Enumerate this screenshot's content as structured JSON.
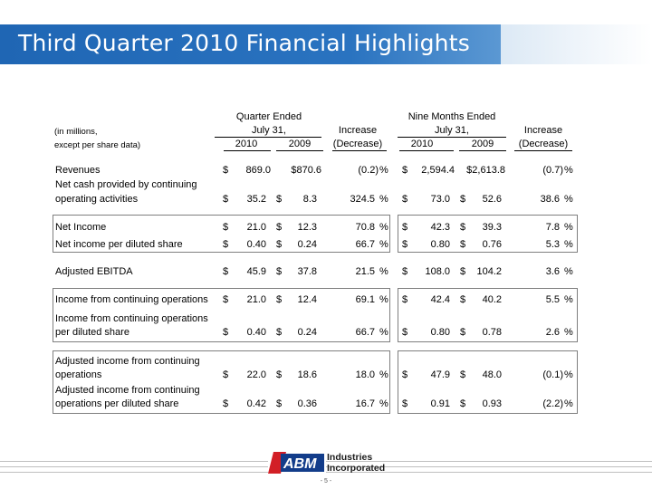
{
  "title": "Third Quarter 2010 Financial Highlights",
  "header": {
    "qe_label": "Quarter Ended",
    "qe_date": "July 31,",
    "nme_label": "Nine Months Ended",
    "nme_date": "July 31,",
    "inc1": "Increase",
    "inc2": "(Decrease)",
    "units1": "(in millions,",
    "units2": "except per share data)",
    "y2010": "2010",
    "y2009": "2009"
  },
  "rows": {
    "revenues": {
      "label1": "Revenues",
      "d1": "$",
      "v1": "869.0",
      "d2": "",
      "v2": "$870.6",
      "inc1": "(0.2)",
      "p1": "%",
      "d3": "$",
      "v3": "2,594.4",
      "d4": "",
      "v4": "$2,613.8",
      "inc2": "(0.7)",
      "p2": "%"
    },
    "netcash": {
      "label1": "Net cash provided by continuing",
      "label2": "operating activities",
      "d1": "$",
      "v1": "35.2",
      "d2": "$",
      "v2": "8.3",
      "inc1": "324.5",
      "p1": "%",
      "d3": "$",
      "v3": "73.0",
      "d4": "$",
      "v4": "52.6",
      "inc2": "38.6",
      "p2": "%"
    },
    "netincome": {
      "label1": "Net Income",
      "d1": "$",
      "v1": "21.0",
      "d2": "$",
      "v2": "12.3",
      "inc1": "70.8",
      "p1": "%",
      "d3": "$",
      "v3": "42.3",
      "d4": "$",
      "v4": "39.3",
      "inc2": "7.8",
      "p2": "%"
    },
    "niperdil": {
      "label1": "Net income per diluted share",
      "d1": "$",
      "v1": "0.40",
      "d2": "$",
      "v2": "0.24",
      "inc1": "66.7",
      "p1": "%",
      "d3": "$",
      "v3": "0.80",
      "d4": "$",
      "v4": "0.76",
      "inc2": "5.3",
      "p2": "%"
    },
    "ebitda": {
      "label1": "Adjusted EBITDA",
      "d1": "$",
      "v1": "45.9",
      "d2": "$",
      "v2": "37.8",
      "inc1": "21.5",
      "p1": "%",
      "d3": "$",
      "v3": "108.0",
      "d4": "$",
      "v4": "104.2",
      "inc2": "3.6",
      "p2": "%"
    },
    "ifco": {
      "label1": "Income from continuing operations",
      "d1": "$",
      "v1": "21.0",
      "d2": "$",
      "v2": "12.4",
      "inc1": "69.1",
      "p1": "%",
      "d3": "$",
      "v3": "42.4",
      "d4": "$",
      "v4": "40.2",
      "inc2": "5.5",
      "p2": "%"
    },
    "ifcopd": {
      "label1": "Income from continuing operations",
      "label2": "per diluted share",
      "d1": "$",
      "v1": "0.40",
      "d2": "$",
      "v2": "0.24",
      "inc1": "66.7",
      "p1": "%",
      "d3": "$",
      "v3": "0.80",
      "d4": "$",
      "v4": "0.78",
      "inc2": "2.6",
      "p2": "%"
    },
    "aifco": {
      "label1": "Adjusted income from continuing",
      "label2": "operations",
      "d1": "$",
      "v1": "22.0",
      "d2": "$",
      "v2": "18.6",
      "inc1": "18.0",
      "p1": "%",
      "d3": "$",
      "v3": "47.9",
      "d4": "$",
      "v4": "48.0",
      "inc2": "(0.1)",
      "p2": "%"
    },
    "aifcopd": {
      "label1": "Adjusted income from continuing",
      "label2": "operations per diluted share",
      "d1": "$",
      "v1": "0.42",
      "d2": "$",
      "v2": "0.36",
      "inc1": "16.7",
      "p1": "%",
      "d3": "$",
      "v3": "0.91",
      "d4": "$",
      "v4": "0.93",
      "inc2": "(2.2)",
      "p2": "%"
    }
  },
  "logo": {
    "mark": "ABM",
    "line1": "Industries",
    "line2": "Incorporated"
  },
  "page": "- 5 -"
}
